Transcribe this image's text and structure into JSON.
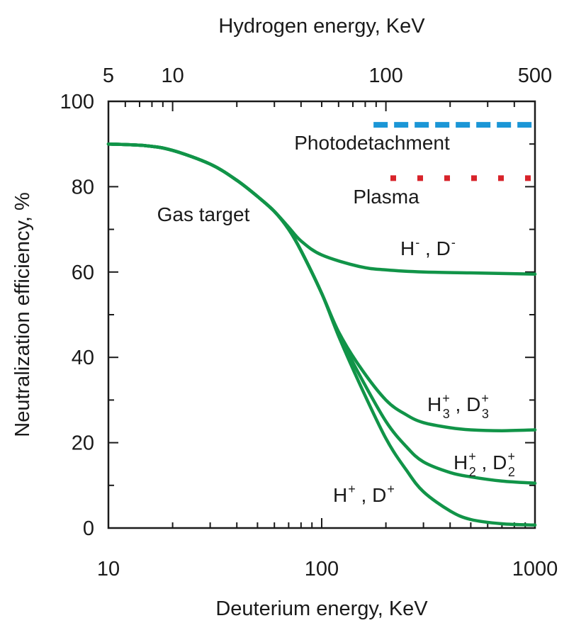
{
  "chart_data": {
    "type": "line",
    "title": "",
    "xlabel": "Deuterium energy, KeV",
    "x2label": "Hydrogen energy, KeV",
    "ylabel": "Neutralization efficiency, %",
    "xscale": "log",
    "xlim": [
      10,
      1000
    ],
    "ylim": [
      0,
      100
    ],
    "grid": false,
    "x_ticks": [
      10,
      100,
      1000
    ],
    "x_tick_labels": [
      "10",
      "100",
      "1000"
    ],
    "x2_ticks": [
      5,
      10,
      100,
      500
    ],
    "x2_tick_labels": [
      "5",
      "10",
      "100",
      "500"
    ],
    "y_ticks": [
      0,
      20,
      40,
      60,
      80,
      100
    ],
    "y_tick_labels": [
      "0",
      "20",
      "40",
      "60",
      "80",
      "100"
    ],
    "colors": {
      "gas": "#119448",
      "photodetachment": "#1b96d6",
      "plasma": "#d8232a",
      "axis": "#1a1a1a"
    },
    "series": [
      {
        "name": "H-, D-",
        "label_base": [
          "H",
          "D"
        ],
        "label_mark": "-",
        "style": "solid",
        "x": [
          10,
          15,
          20,
          30,
          40,
          50,
          60,
          70,
          80,
          100,
          150,
          200,
          300,
          500,
          1000
        ],
        "y": [
          90,
          89.6,
          88.5,
          85.3,
          81.5,
          77.7,
          74.2,
          70.5,
          67.3,
          64,
          61.3,
          60.5,
          60,
          59.8,
          59.5
        ]
      },
      {
        "name": "H3+, D3+",
        "label_base": [
          "H",
          "D"
        ],
        "label_mark": "+",
        "label_sub": "3",
        "style": "solid",
        "x": [
          10,
          15,
          20,
          30,
          40,
          50,
          60,
          70,
          80,
          100,
          120,
          150,
          200,
          250,
          300,
          400,
          500,
          700,
          1000
        ],
        "y": [
          90,
          89.6,
          88.5,
          85.3,
          81.5,
          77.7,
          74.2,
          70,
          65,
          55,
          46,
          38,
          30,
          26.5,
          24.7,
          23.5,
          23,
          22.8,
          23
        ]
      },
      {
        "name": "H2+, D2+",
        "label_base": [
          "H",
          "D"
        ],
        "label_mark": "+",
        "label_sub": "2",
        "style": "solid",
        "x": [
          10,
          15,
          20,
          30,
          40,
          50,
          60,
          70,
          80,
          100,
          120,
          150,
          200,
          250,
          300,
          400,
          500,
          700,
          1000
        ],
        "y": [
          90,
          89.6,
          88.5,
          85.3,
          81.5,
          77.7,
          74.2,
          70,
          65,
          55,
          45.5,
          36,
          25,
          19,
          15.5,
          13,
          12,
          11,
          10.5
        ]
      },
      {
        "name": "H+, D+",
        "label_base": [
          "H",
          "D"
        ],
        "label_mark": "+",
        "style": "solid",
        "x": [
          10,
          15,
          20,
          30,
          40,
          50,
          60,
          70,
          80,
          100,
          120,
          150,
          200,
          250,
          300,
          400,
          500,
          700,
          1000
        ],
        "y": [
          90,
          89.6,
          88.5,
          85.3,
          81.5,
          77.7,
          74.2,
          70,
          65,
          55,
          45,
          34,
          21,
          13.5,
          8.5,
          4,
          2,
          1,
          0.7
        ]
      },
      {
        "name": "Photodetachment",
        "style": "dashed",
        "x": [
          175,
          1000
        ],
        "y": [
          94.5,
          94.5
        ]
      },
      {
        "name": "Plasma",
        "style": "dotted",
        "x": [
          210,
          1000
        ],
        "y": [
          82,
          82
        ]
      }
    ],
    "annotations": {
      "gas_target": "Gas target",
      "photodetachment": "Photodetachment",
      "plasma": "Plasma"
    }
  }
}
